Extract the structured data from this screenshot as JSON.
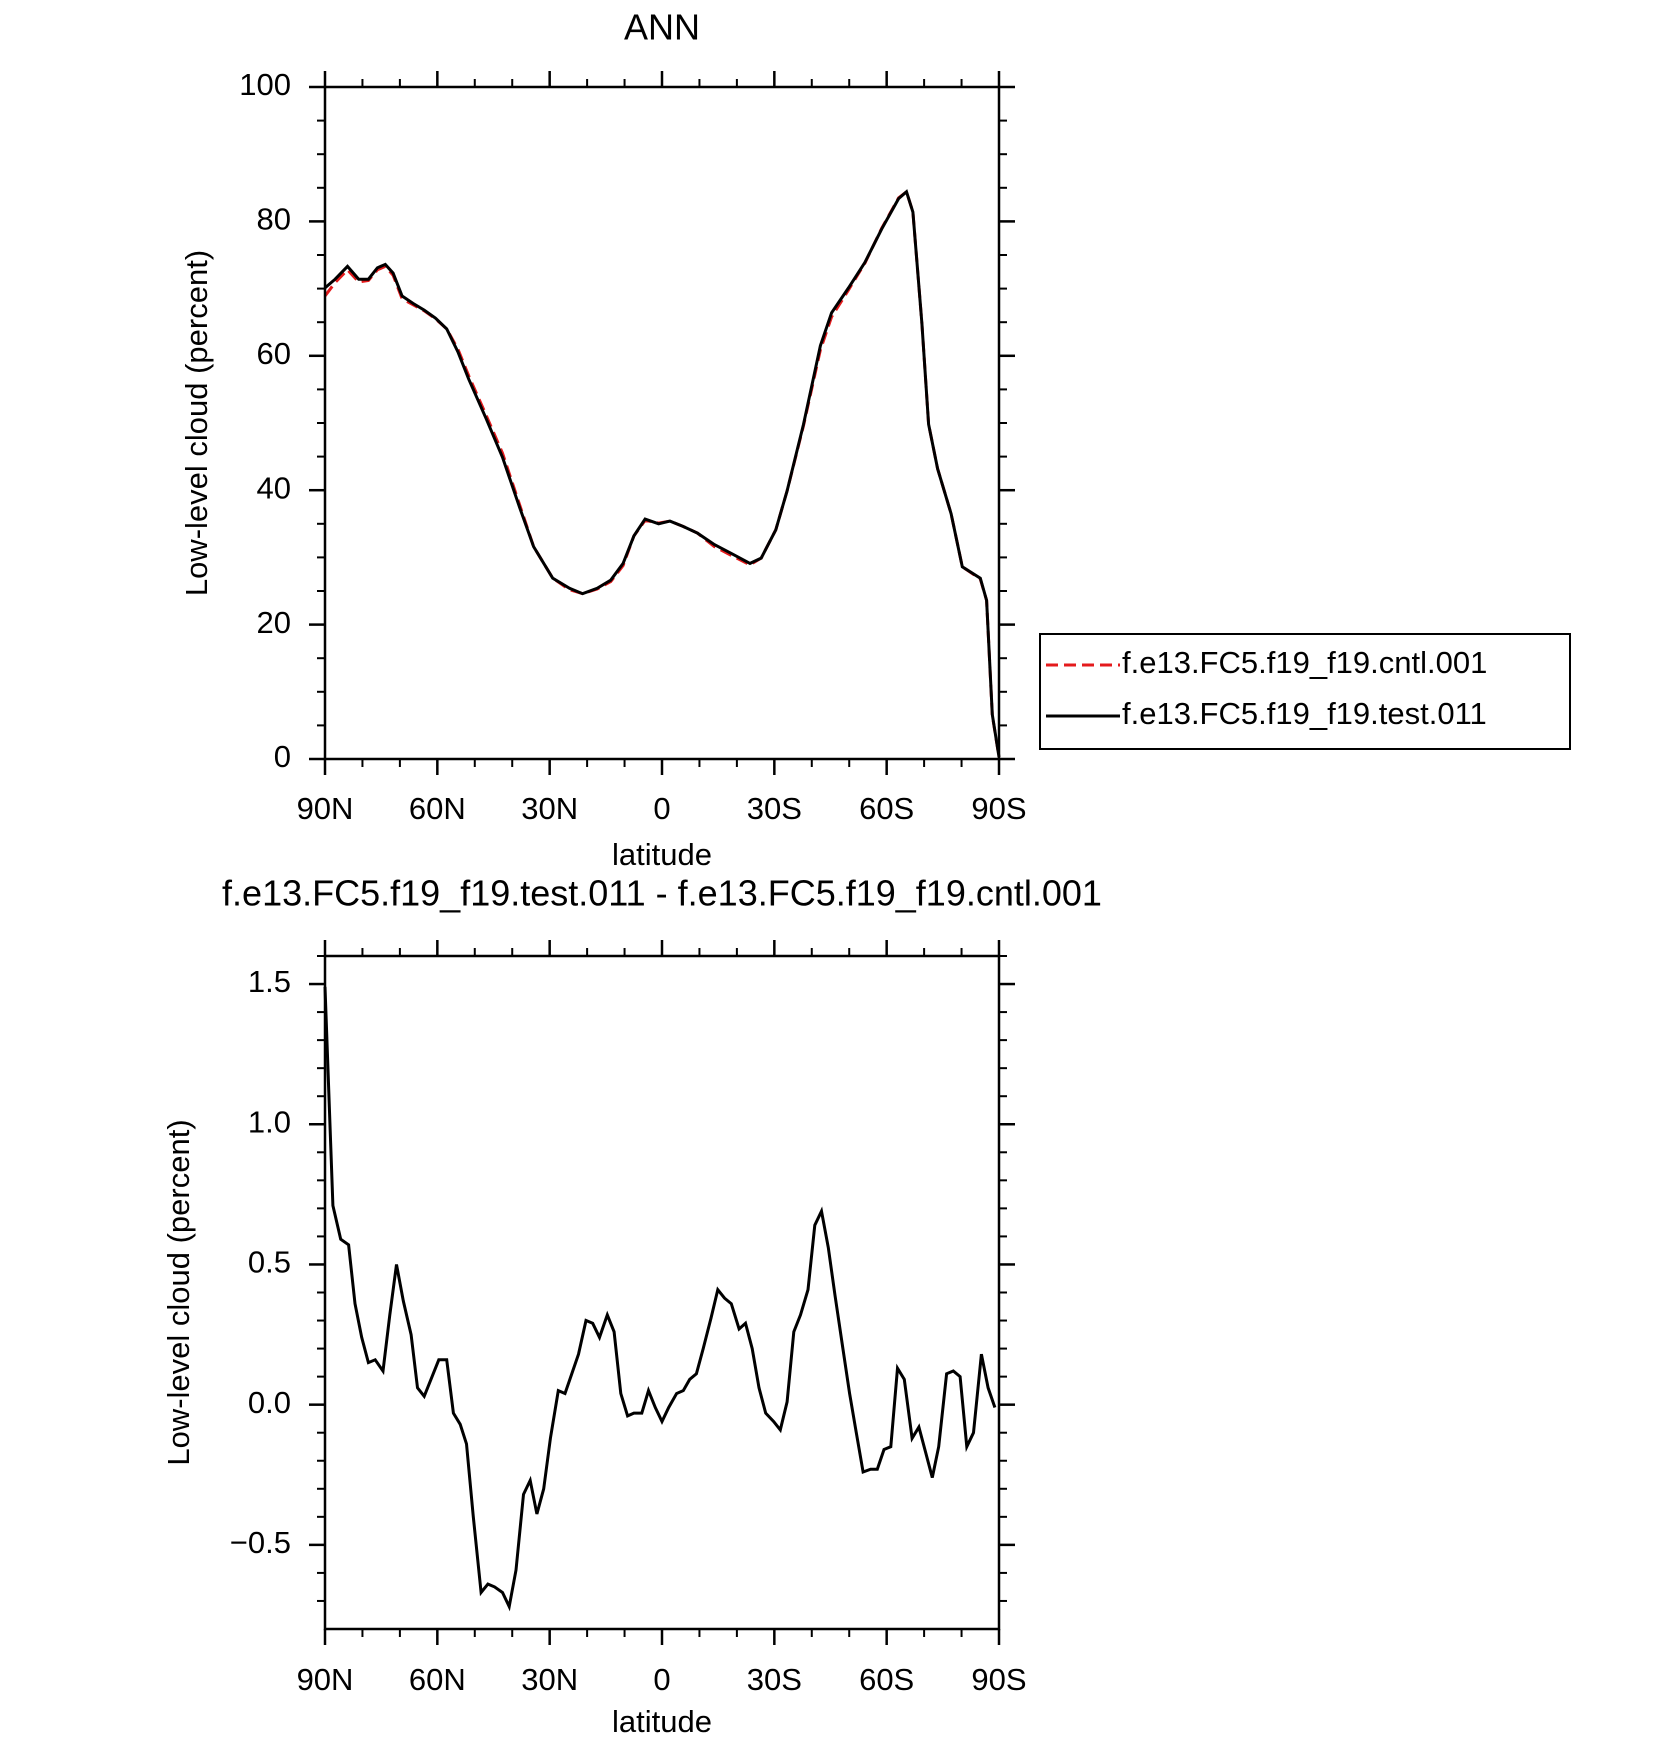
{
  "chart_data": [
    {
      "type": "line",
      "title": "ANN",
      "xlabel": "latitude",
      "ylabel": "Low-level cloud (percent)",
      "x": [
        90,
        87.3,
        84,
        81,
        78.4,
        76,
        73.9,
        71.8,
        69.4,
        66.5,
        63.5,
        60.5,
        57.5,
        54.5,
        51.6,
        47,
        42.6,
        38,
        34.3,
        29.2,
        24.7,
        21.2,
        17.3,
        13.7,
        10.4,
        7.5,
        4.5,
        0.9,
        -2.1,
        -5.7,
        -9.5,
        -14,
        -18.5,
        -23.5,
        -26.5,
        -30.4,
        -33.4,
        -37.8,
        -42.3,
        -45.3,
        -49.8,
        -54.2,
        -58.7,
        -63.2,
        -65.3,
        -67,
        -69.4,
        -71.2,
        -73.6,
        -77.2,
        -80.2,
        -85,
        -86.7,
        -88.2,
        -90
      ],
      "series": [
        {
          "name": "f.e13.FC5.f19_f19.cntl.001",
          "color": "#e41a1c",
          "dash": "dashed",
          "values": [
            68.9,
            70.9,
            72.8,
            71.0,
            71.2,
            72.8,
            73.3,
            72.0,
            68.5,
            67.6,
            66.7,
            65.5,
            64.0,
            61.0,
            57.0,
            51.2,
            45.5,
            37.8,
            31.6,
            26.9,
            25.2,
            24.6,
            25.3,
            26.4,
            28.8,
            33.2,
            35.5,
            35.1,
            35.4,
            34.6,
            33.6,
            31.6,
            30.3,
            28.9,
            29.9,
            34.1,
            39.9,
            49.6,
            60.9,
            65.8,
            69.8,
            73.8,
            79.0,
            83.5,
            84.4,
            81.4,
            64.8,
            49.8,
            43.2,
            36.5,
            28.6,
            26.8,
            23.6,
            6.5,
            0.3
          ]
        },
        {
          "name": "f.e13.FC5.f19_f19.test.011",
          "color": "#000000",
          "dash": "solid",
          "values": [
            70.1,
            71.4,
            73.3,
            71.4,
            71.4,
            73.1,
            73.6,
            72.3,
            68.9,
            67.8,
            66.8,
            65.6,
            64.0,
            60.6,
            56.5,
            50.7,
            44.9,
            37.4,
            31.6,
            26.9,
            25.4,
            24.6,
            25.4,
            26.6,
            29.1,
            33.2,
            35.7,
            35.0,
            35.4,
            34.6,
            33.6,
            31.9,
            30.6,
            29.1,
            29.9,
            34.1,
            39.9,
            49.8,
            61.5,
            66.4,
            70.1,
            73.9,
            78.9,
            83.4,
            84.4,
            81.4,
            64.8,
            49.8,
            43.2,
            36.5,
            28.6,
            26.9,
            23.6,
            6.6,
            0.3
          ]
        }
      ],
      "xlim": [
        90,
        -90
      ],
      "xticks": [
        {
          "value": 90,
          "label": "90N"
        },
        {
          "value": 60,
          "label": "60N"
        },
        {
          "value": 30,
          "label": "30N"
        },
        0,
        {
          "value": -30,
          "label": "30S"
        },
        {
          "value": -60,
          "label": "60S"
        },
        {
          "value": -90,
          "label": "90S"
        }
      ],
      "xminorticks": [
        80,
        70,
        50,
        40,
        20,
        10,
        -10,
        -20,
        -40,
        -50,
        -70,
        -80
      ],
      "ylim": [
        0,
        100
      ],
      "yticks": [
        0,
        20,
        40,
        60,
        80,
        100
      ],
      "yminorticks": [
        5,
        10,
        15,
        25,
        30,
        35,
        45,
        50,
        55,
        65,
        70,
        75,
        85,
        90,
        95
      ],
      "legend": "outside-right"
    },
    {
      "type": "line",
      "title": "f.e13.FC5.f19_f19.test.011 - f.e13.FC5.f19_f19.cntl.001",
      "xlabel": "latitude",
      "ylabel": "Low-level cloud (percent)",
      "x": [
        90,
        87.9,
        85.8,
        83.7,
        82,
        80.2,
        78.4,
        76.6,
        74.5,
        72.7,
        70.9,
        69.1,
        67,
        65.3,
        63.5,
        61.4,
        59.6,
        57.5,
        55.7,
        53.9,
        52.2,
        50.4,
        48.3,
        46.5,
        44.7,
        42.6,
        40.8,
        39,
        37,
        35.2,
        33.4,
        31.6,
        29.8,
        27.7,
        25.9,
        24.1,
        22.3,
        20.3,
        18.5,
        16.7,
        14.6,
        12.8,
        11,
        9.2,
        7.5,
        5.4,
        3.6,
        1.8,
        0,
        -1.8,
        -3.9,
        -5.7,
        -7.4,
        -9.2,
        -11,
        -13.1,
        -14.9,
        -16.7,
        -18.5,
        -20.6,
        -22.3,
        -24.1,
        -25.9,
        -27.7,
        -29.8,
        -31.6,
        -33.4,
        -35.2,
        -37,
        -39,
        -40.8,
        -42.6,
        -44.4,
        -46.2,
        -48.3,
        -50.1,
        -51.9,
        -53.7,
        -55.7,
        -57.5,
        -59.3,
        -61.1,
        -62.9,
        -64.7,
        -66.8,
        -68.6,
        -70.4,
        -72.2,
        -73.9,
        -76,
        -77.8,
        -79.6,
        -81.4,
        -83.2,
        -85.3,
        -87.1,
        -88.9
      ],
      "series": [
        {
          "color": "#000000",
          "dash": "solid",
          "values": [
            1.49,
            0.71,
            0.59,
            0.57,
            0.36,
            0.24,
            0.15,
            0.16,
            0.12,
            0.32,
            0.5,
            0.37,
            0.25,
            0.06,
            0.03,
            0.1,
            0.16,
            0.16,
            -0.03,
            -0.07,
            -0.14,
            -0.4,
            -0.67,
            -0.64,
            -0.65,
            -0.67,
            -0.72,
            -0.59,
            -0.32,
            -0.27,
            -0.39,
            -0.3,
            -0.12,
            0.05,
            0.04,
            0.11,
            0.18,
            0.3,
            0.29,
            0.24,
            0.32,
            0.26,
            0.04,
            -0.04,
            -0.03,
            -0.03,
            0.05,
            -0.01,
            -0.06,
            -0.01,
            0.04,
            0.05,
            0.09,
            0.11,
            0.2,
            0.31,
            0.41,
            0.38,
            0.36,
            0.27,
            0.29,
            0.2,
            0.06,
            -0.03,
            -0.06,
            -0.09,
            0.01,
            0.26,
            0.32,
            0.41,
            0.64,
            0.69,
            0.56,
            0.39,
            0.2,
            0.04,
            -0.1,
            -0.24,
            -0.23,
            -0.23,
            -0.16,
            -0.15,
            0.13,
            0.09,
            -0.12,
            -0.08,
            -0.17,
            -0.26,
            -0.15,
            0.11,
            0.12,
            0.1,
            -0.15,
            -0.1,
            0.18,
            0.06,
            -0.01
          ]
        }
      ],
      "xlim": [
        90,
        -90
      ],
      "xticks": [
        {
          "value": 90,
          "label": "90N"
        },
        {
          "value": 60,
          "label": "60N"
        },
        {
          "value": 30,
          "label": "30N"
        },
        0,
        {
          "value": -30,
          "label": "30S"
        },
        {
          "value": -60,
          "label": "60S"
        },
        {
          "value": -90,
          "label": "90S"
        }
      ],
      "xminorticks": [
        80,
        70,
        50,
        40,
        20,
        10,
        -10,
        -20,
        -40,
        -50,
        -70,
        -80
      ],
      "ylim": [
        -0.8,
        1.6
      ],
      "yticks": [
        {
          "value": -0.5,
          "label": "−0.5"
        },
        {
          "value": 0,
          "label": "0.0"
        },
        {
          "value": 0.5,
          "label": "0.5"
        },
        {
          "value": 1,
          "label": "1.0"
        },
        1.5
      ],
      "yminorticks": [
        -0.7,
        -0.6,
        -0.4,
        -0.3,
        -0.2,
        -0.1,
        0.1,
        0.2,
        0.3,
        0.4,
        0.6,
        0.7,
        0.8,
        0.9,
        1.1,
        1.2,
        1.3,
        1.4,
        1.6
      ]
    }
  ]
}
